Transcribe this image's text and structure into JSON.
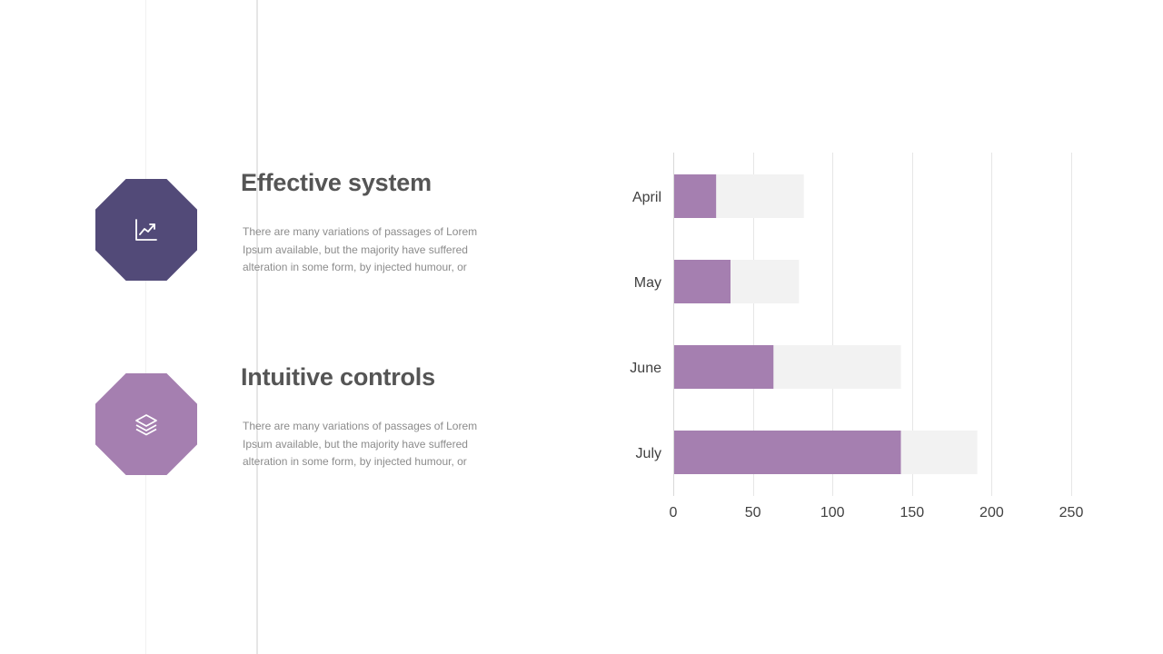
{
  "colors": {
    "dark_purple": "#524a78",
    "light_purple": "#a57fb0",
    "bar_background": "#f2f2f2",
    "title": "#555555",
    "body_text": "#8c8c8c"
  },
  "features": [
    {
      "title": "Effective system",
      "description": "There are many variations of passages of Lorem Ipsum available, but the majority have suffered alteration in some form, by injected humour, or",
      "icon": "chart-line-icon"
    },
    {
      "title": "Intuitive controls",
      "description": "There are many variations of passages of Lorem Ipsum available, but the majority have suffered alteration in some form, by injected humour, or",
      "icon": "layers-icon"
    }
  ],
  "chart_data": {
    "type": "bar",
    "orientation": "horizontal",
    "stacked": true,
    "categories": [
      "April",
      "May",
      "June",
      "July"
    ],
    "series": [
      {
        "values": [
          27,
          36,
          63,
          143
        ],
        "color": "#a57fb0"
      },
      {
        "values": [
          55,
          43,
          80,
          48
        ],
        "color": "#f2f2f2"
      }
    ],
    "xlim": [
      0,
      250
    ],
    "xticks": [
      0,
      50,
      100,
      150,
      200,
      250
    ],
    "grid": "vertical",
    "legend": "none"
  }
}
